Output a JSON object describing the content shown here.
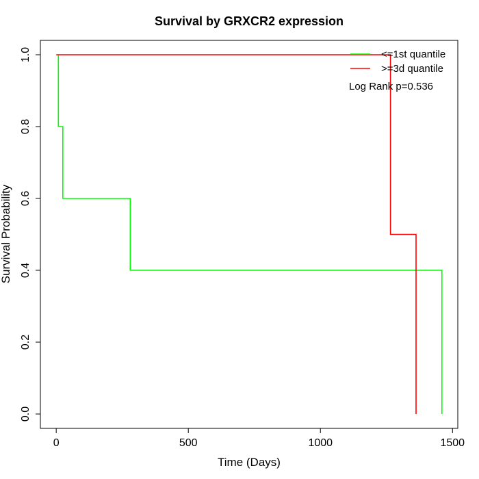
{
  "chart_data": {
    "type": "line",
    "title": "Survival by GRXCR2 expression",
    "xlabel": "Time (Days)",
    "ylabel": "Survival Probability",
    "xlim": [
      -60,
      1520
    ],
    "ylim": [
      -0.04,
      1.04
    ],
    "x_ticks": [
      0,
      500,
      1000,
      1500
    ],
    "y_ticks": [
      0.0,
      0.2,
      0.4,
      0.6,
      0.8,
      1.0
    ],
    "x_tick_labels": [
      "0",
      "500",
      "1000",
      "1500"
    ],
    "y_tick_labels": [
      "0.0",
      "0.2",
      "0.4",
      "0.6",
      "0.8",
      "1.0"
    ],
    "grid": false,
    "legend_position": "top-right",
    "annotation": "Log Rank p=0.536",
    "series": [
      {
        "name": "<=1st quantile",
        "color": "#00ff00",
        "steps": [
          [
            8,
            1.0
          ],
          [
            8,
            0.8
          ],
          [
            25,
            0.8
          ],
          [
            25,
            0.6
          ],
          [
            280,
            0.6
          ],
          [
            280,
            0.4
          ],
          [
            1460,
            0.4
          ],
          [
            1460,
            0.0
          ]
        ]
      },
      {
        "name": ">=3d quantile",
        "color": "#ff0000",
        "steps": [
          [
            0,
            1.0
          ],
          [
            1265,
            1.0
          ],
          [
            1265,
            0.5
          ],
          [
            1362,
            0.5
          ],
          [
            1362,
            0.0
          ]
        ]
      }
    ]
  }
}
